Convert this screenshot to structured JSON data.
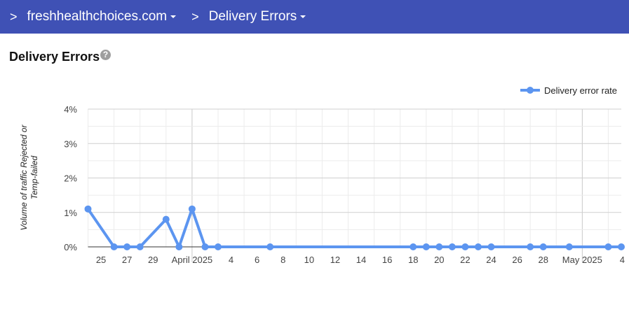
{
  "topbar": {
    "crumbs": [
      {
        "label": "freshhealthchoices.com"
      },
      {
        "label": "Delivery Errors"
      }
    ]
  },
  "page": {
    "title": "Delivery Errors",
    "help_icon": "help-circle-icon"
  },
  "chart_data": {
    "type": "line",
    "title": "",
    "ylabel": "Volume of traffic Rejected or Temp-failed",
    "ylabel_lines": [
      "Volume of traffic Rejected or",
      "Temp-failed"
    ],
    "ylim": [
      0,
      4
    ],
    "yticks": [
      "0%",
      "1%",
      "2%",
      "3%",
      "4%"
    ],
    "xlim": [
      "2025-03-24",
      "2025-05-04"
    ],
    "xtick_labels": [
      "25",
      "27",
      "29",
      "April 2025",
      "4",
      "6",
      "8",
      "10",
      "12",
      "14",
      "16",
      "18",
      "20",
      "22",
      "24",
      "26",
      "28",
      "May 2025",
      "4"
    ],
    "grid": true,
    "legend": "top-right",
    "series": [
      {
        "name": "Delivery error rate",
        "color": "#5c95f0",
        "x": [
          "2025-03-24",
          "2025-03-26",
          "2025-03-27",
          "2025-03-28",
          "2025-03-30",
          "2025-03-31",
          "2025-04-01",
          "2025-04-02",
          "2025-04-03",
          "2025-04-07",
          "2025-04-18",
          "2025-04-19",
          "2025-04-20",
          "2025-04-21",
          "2025-04-22",
          "2025-04-23",
          "2025-04-24",
          "2025-04-27",
          "2025-04-28",
          "2025-04-30",
          "2025-05-03",
          "2025-05-04"
        ],
        "y": [
          1.1,
          0,
          0,
          0,
          0.8,
          0,
          1.1,
          0,
          0,
          0,
          0,
          0,
          0,
          0,
          0,
          0,
          0,
          0,
          0,
          0,
          0,
          0
        ]
      }
    ]
  }
}
